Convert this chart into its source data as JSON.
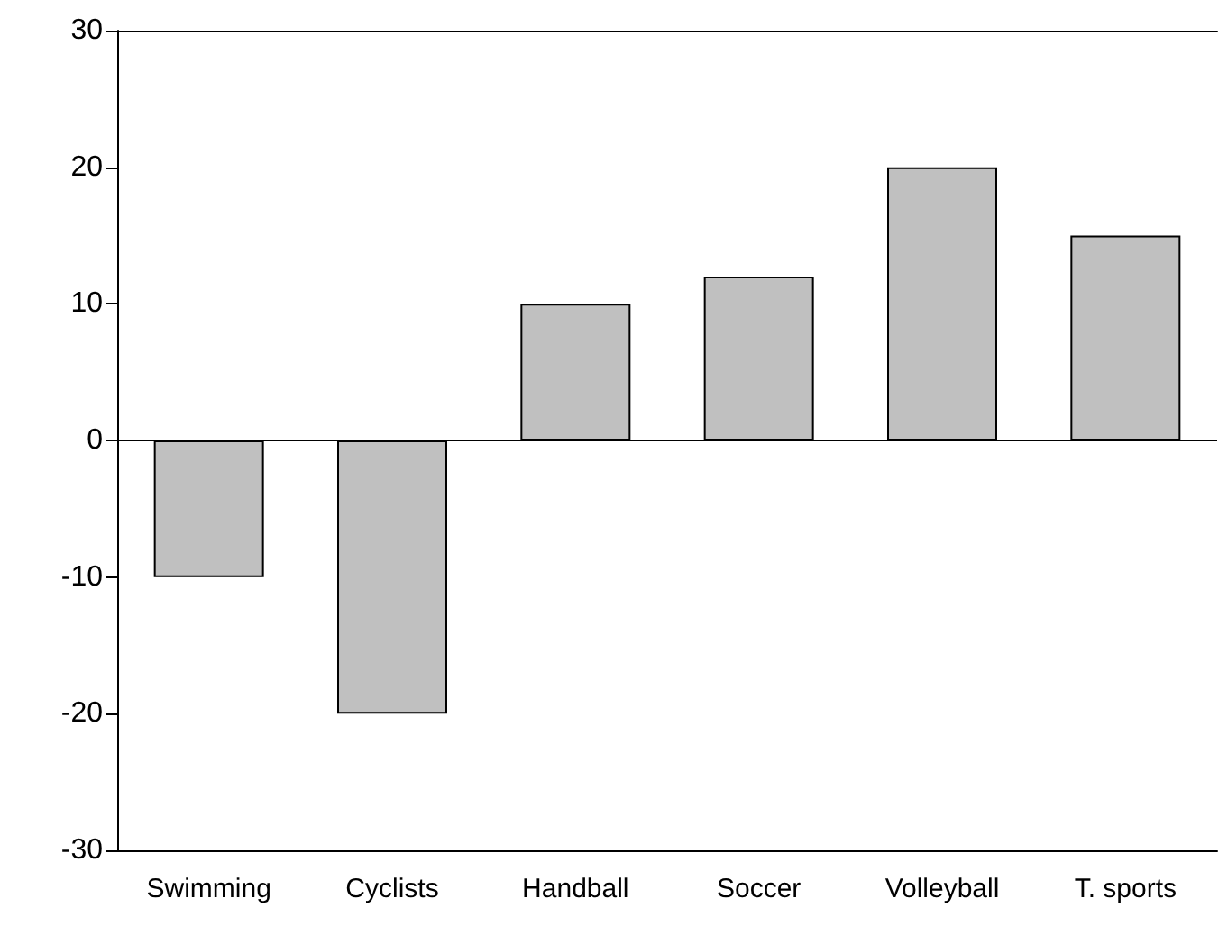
{
  "chart_data": {
    "type": "bar",
    "categories": [
      "Swimming",
      "Cyclists",
      "Handball",
      "Soccer",
      "Volleyball",
      "T. sports"
    ],
    "values": [
      -10,
      -20,
      10,
      12,
      20,
      15
    ],
    "color": "#c0c0c0",
    "ylim": [
      -30,
      30
    ],
    "yticks": [
      -30,
      -20,
      -10,
      0,
      10,
      20,
      30
    ]
  }
}
